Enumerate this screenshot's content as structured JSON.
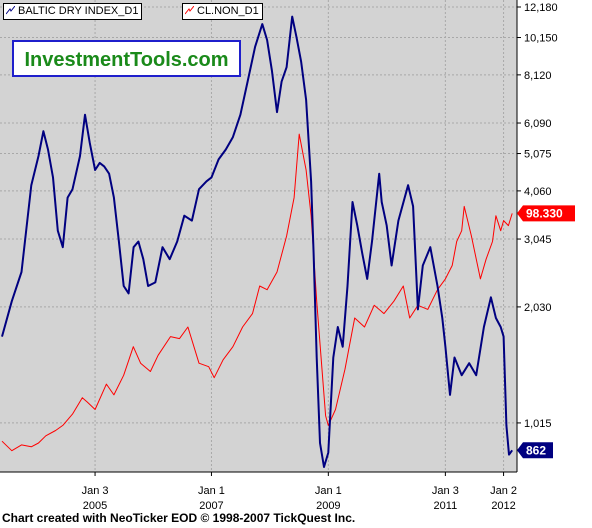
{
  "legend": {
    "series1_label": "BALTIC DRY INDEX_D1",
    "series2_label": "CL.NON_D1"
  },
  "brand": {
    "text": "InvestmentTools.com"
  },
  "footer": {
    "credit": "Chart created with NeoTicker EOD © 1998-2007 TickQuest Inc."
  },
  "colors": {
    "plot_bg": "#d3d3d3",
    "baltic": "#000080",
    "oil": "#ff0000",
    "grid": "#a8a8a8"
  },
  "chart_data": {
    "type": "line",
    "y_scale": "log",
    "ylim": [
      780,
      12180
    ],
    "y_ticks": [
      "12,180",
      "10,150",
      "8,120",
      "6,090",
      "5,075",
      "4,060",
      "3,045",
      "2,030",
      "1,015"
    ],
    "x_ticks": [
      {
        "label": [
          "Jan 3",
          "2005"
        ],
        "date": "2005-01-03"
      },
      {
        "label": [
          "Jan 1",
          "2007"
        ],
        "date": "2007-01-01"
      },
      {
        "label": [
          "Jan 1",
          "2009"
        ],
        "date": "2009-01-01"
      },
      {
        "label": [
          "Jan 3",
          "2011"
        ],
        "date": "2011-01-03"
      },
      {
        "label": [
          "Jan 2",
          "2012"
        ],
        "date": "2012-01-02"
      }
    ],
    "x_range": [
      "2003-06-01",
      "2012-03-01"
    ],
    "series": [
      {
        "name": "BALTIC DRY INDEX_D1",
        "color": "#000080",
        "last_label": "862",
        "points": [
          [
            "2003-06-01",
            1700
          ],
          [
            "2003-08-01",
            2100
          ],
          [
            "2003-10-01",
            2500
          ],
          [
            "2003-12-01",
            4200
          ],
          [
            "2004-01-15",
            5000
          ],
          [
            "2004-02-15",
            5800
          ],
          [
            "2004-03-15",
            5200
          ],
          [
            "2004-04-15",
            4400
          ],
          [
            "2004-05-15",
            3200
          ],
          [
            "2004-06-15",
            2900
          ],
          [
            "2004-07-15",
            3900
          ],
          [
            "2004-08-15",
            4100
          ],
          [
            "2004-10-01",
            5000
          ],
          [
            "2004-11-01",
            6400
          ],
          [
            "2004-12-01",
            5400
          ],
          [
            "2005-01-03",
            4600
          ],
          [
            "2005-02-01",
            4800
          ],
          [
            "2005-03-01",
            4700
          ],
          [
            "2005-04-01",
            4500
          ],
          [
            "2005-05-01",
            3900
          ],
          [
            "2005-06-01",
            3000
          ],
          [
            "2005-07-01",
            2300
          ],
          [
            "2005-08-01",
            2200
          ],
          [
            "2005-09-01",
            2900
          ],
          [
            "2005-10-01",
            3000
          ],
          [
            "2005-11-01",
            2700
          ],
          [
            "2005-12-01",
            2300
          ],
          [
            "2006-01-15",
            2350
          ],
          [
            "2006-03-01",
            2900
          ],
          [
            "2006-04-15",
            2700
          ],
          [
            "2006-06-01",
            3000
          ],
          [
            "2006-07-15",
            3500
          ],
          [
            "2006-09-01",
            3400
          ],
          [
            "2006-10-15",
            4100
          ],
          [
            "2006-12-01",
            4300
          ],
          [
            "2007-01-01",
            4400
          ],
          [
            "2007-02-15",
            4900
          ],
          [
            "2007-04-01",
            5200
          ],
          [
            "2007-05-15",
            5600
          ],
          [
            "2007-07-01",
            6400
          ],
          [
            "2007-08-15",
            7800
          ],
          [
            "2007-10-01",
            9600
          ],
          [
            "2007-11-15",
            11000
          ],
          [
            "2007-12-15",
            10000
          ],
          [
            "2008-01-15",
            8300
          ],
          [
            "2008-02-15",
            6500
          ],
          [
            "2008-03-15",
            7800
          ],
          [
            "2008-04-15",
            8500
          ],
          [
            "2008-05-20",
            11500
          ],
          [
            "2008-06-15",
            10200
          ],
          [
            "2008-07-15",
            8800
          ],
          [
            "2008-08-15",
            7000
          ],
          [
            "2008-09-15",
            4300
          ],
          [
            "2008-10-01",
            2800
          ],
          [
            "2008-10-20",
            1500
          ],
          [
            "2008-11-10",
            900
          ],
          [
            "2008-12-05",
            780
          ],
          [
            "2009-01-01",
            850
          ],
          [
            "2009-02-01",
            1500
          ],
          [
            "2009-03-01",
            1800
          ],
          [
            "2009-04-01",
            1600
          ],
          [
            "2009-05-01",
            2300
          ],
          [
            "2009-06-01",
            3800
          ],
          [
            "2009-07-01",
            3300
          ],
          [
            "2009-08-01",
            2800
          ],
          [
            "2009-09-01",
            2400
          ],
          [
            "2009-10-01",
            3000
          ],
          [
            "2009-11-15",
            4500
          ],
          [
            "2009-12-01",
            3800
          ],
          [
            "2010-01-01",
            3300
          ],
          [
            "2010-02-01",
            2600
          ],
          [
            "2010-03-15",
            3400
          ],
          [
            "2010-05-15",
            4200
          ],
          [
            "2010-06-15",
            3700
          ],
          [
            "2010-07-15",
            2000
          ],
          [
            "2010-08-15",
            2600
          ],
          [
            "2010-10-01",
            2900
          ],
          [
            "2010-11-15",
            2300
          ],
          [
            "2010-12-15",
            1900
          ],
          [
            "2011-01-03",
            1600
          ],
          [
            "2011-02-01",
            1200
          ],
          [
            "2011-03-01",
            1500
          ],
          [
            "2011-04-15",
            1350
          ],
          [
            "2011-06-01",
            1450
          ],
          [
            "2011-07-15",
            1350
          ],
          [
            "2011-09-01",
            1800
          ],
          [
            "2011-10-15",
            2150
          ],
          [
            "2011-11-15",
            1900
          ],
          [
            "2011-12-15",
            1800
          ],
          [
            "2012-01-02",
            1700
          ],
          [
            "2012-01-20",
            1000
          ],
          [
            "2012-02-05",
            840
          ],
          [
            "2012-02-25",
            862
          ]
        ]
      },
      {
        "name": "CL.NON_D1",
        "color": "#ff0000",
        "last_label": "98.330",
        "points": [
          [
            "2003-06-01",
            910
          ],
          [
            "2003-08-01",
            860
          ],
          [
            "2003-10-01",
            890
          ],
          [
            "2003-12-01",
            880
          ],
          [
            "2004-01-15",
            900
          ],
          [
            "2004-03-01",
            940
          ],
          [
            "2004-05-01",
            970
          ],
          [
            "2004-06-15",
            1000
          ],
          [
            "2004-08-15",
            1070
          ],
          [
            "2004-10-15",
            1180
          ],
          [
            "2004-11-15",
            1150
          ],
          [
            "2005-01-03",
            1100
          ],
          [
            "2005-03-15",
            1280
          ],
          [
            "2005-05-01",
            1200
          ],
          [
            "2005-07-01",
            1350
          ],
          [
            "2005-08-30",
            1600
          ],
          [
            "2005-10-15",
            1450
          ],
          [
            "2005-12-15",
            1380
          ],
          [
            "2006-02-01",
            1520
          ],
          [
            "2006-04-20",
            1700
          ],
          [
            "2006-06-15",
            1680
          ],
          [
            "2006-08-07",
            1800
          ],
          [
            "2006-10-15",
            1450
          ],
          [
            "2006-12-15",
            1420
          ],
          [
            "2007-01-18",
            1330
          ],
          [
            "2007-03-15",
            1480
          ],
          [
            "2007-05-15",
            1600
          ],
          [
            "2007-07-15",
            1800
          ],
          [
            "2007-09-15",
            1950
          ],
          [
            "2007-10-30",
            2300
          ],
          [
            "2007-12-15",
            2250
          ],
          [
            "2008-02-15",
            2500
          ],
          [
            "2008-04-15",
            3100
          ],
          [
            "2008-06-01",
            3900
          ],
          [
            "2008-07-03",
            5700
          ],
          [
            "2008-08-15",
            4600
          ],
          [
            "2008-09-15",
            3500
          ],
          [
            "2008-10-20",
            2100
          ],
          [
            "2008-12-15",
            1060
          ],
          [
            "2009-01-01",
            1000
          ],
          [
            "2009-02-15",
            1100
          ],
          [
            "2009-04-15",
            1400
          ],
          [
            "2009-06-15",
            1900
          ],
          [
            "2009-08-15",
            1800
          ],
          [
            "2009-10-15",
            2050
          ],
          [
            "2009-12-15",
            1950
          ],
          [
            "2010-02-15",
            2100
          ],
          [
            "2010-04-15",
            2300
          ],
          [
            "2010-05-25",
            1900
          ],
          [
            "2010-07-15",
            2050
          ],
          [
            "2010-09-15",
            2000
          ],
          [
            "2010-11-15",
            2250
          ],
          [
            "2011-01-03",
            2400
          ],
          [
            "2011-02-15",
            2600
          ],
          [
            "2011-03-15",
            3000
          ],
          [
            "2011-04-15",
            3200
          ],
          [
            "2011-05-01",
            3700
          ],
          [
            "2011-06-15",
            3100
          ],
          [
            "2011-08-10",
            2400
          ],
          [
            "2011-09-15",
            2700
          ],
          [
            "2011-10-25",
            3000
          ],
          [
            "2011-11-15",
            3500
          ],
          [
            "2011-12-15",
            3200
          ],
          [
            "2012-01-02",
            3400
          ],
          [
            "2012-02-01",
            3300
          ],
          [
            "2012-02-25",
            3550
          ]
        ]
      }
    ]
  }
}
